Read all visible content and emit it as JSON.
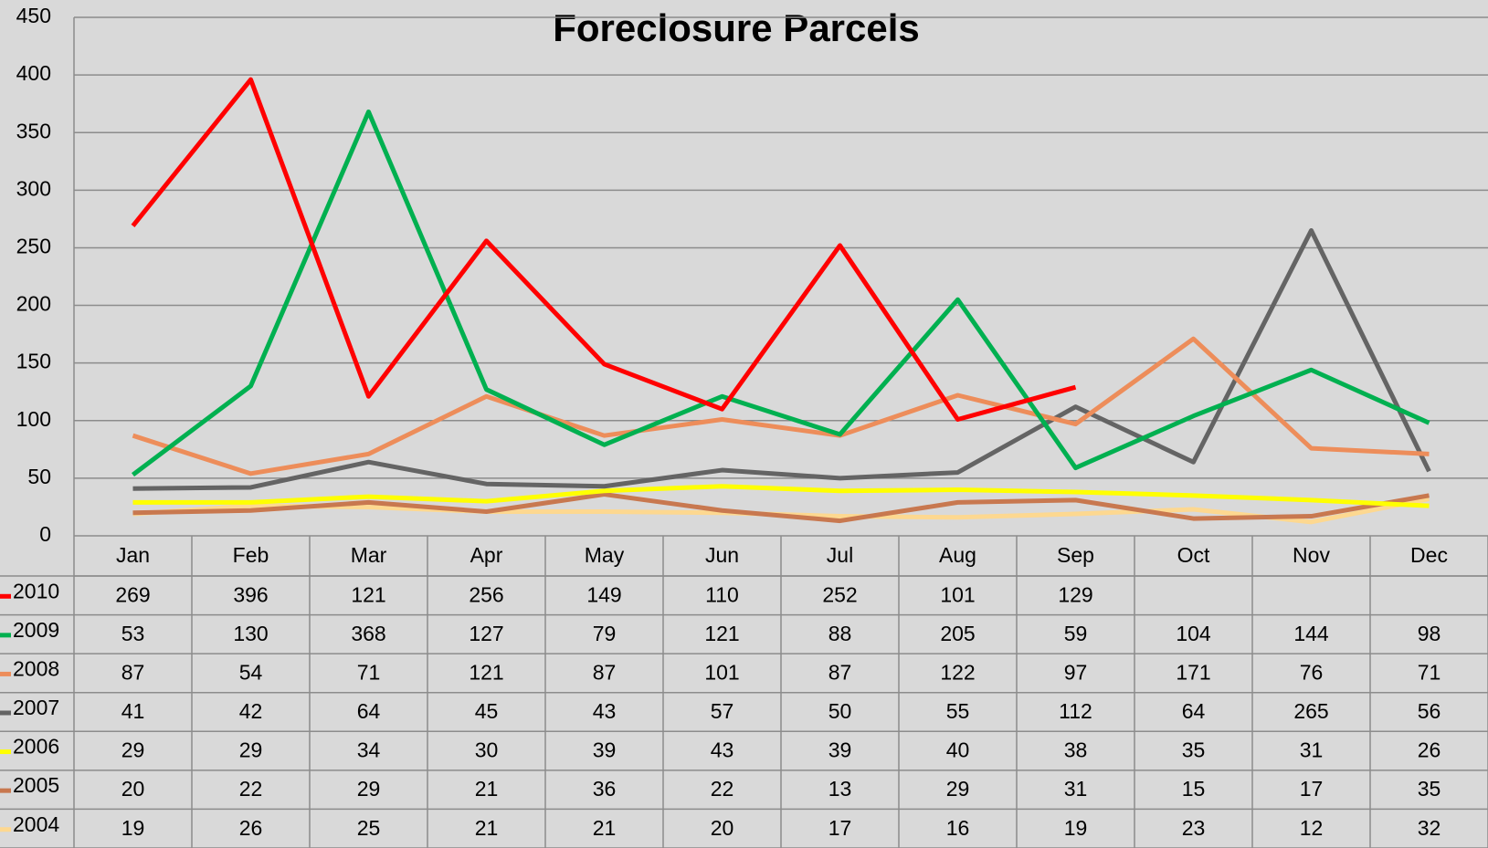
{
  "chart_data": {
    "type": "line",
    "title": "Foreclosure Parcels",
    "categories": [
      "Jan",
      "Feb",
      "Mar",
      "Apr",
      "May",
      "Jun",
      "Jul",
      "Aug",
      "Sep",
      "Oct",
      "Nov",
      "Dec"
    ],
    "series": [
      {
        "name": "2010",
        "color": "#ff0000",
        "values": [
          269,
          396,
          121,
          256,
          149,
          110,
          252,
          101,
          129,
          null,
          null,
          null
        ]
      },
      {
        "name": "2009",
        "color": "#00b050",
        "values": [
          53,
          130,
          368,
          127,
          79,
          121,
          88,
          205,
          59,
          104,
          144,
          98
        ]
      },
      {
        "name": "2008",
        "color": "#ed8d5a",
        "values": [
          87,
          54,
          71,
          121,
          87,
          101,
          87,
          122,
          97,
          171,
          76,
          71
        ]
      },
      {
        "name": "2007",
        "color": "#646464",
        "values": [
          41,
          42,
          64,
          45,
          43,
          57,
          50,
          55,
          112,
          64,
          265,
          56
        ]
      },
      {
        "name": "2006",
        "color": "#ffff00",
        "values": [
          29,
          29,
          34,
          30,
          39,
          43,
          39,
          40,
          38,
          35,
          31,
          26
        ]
      },
      {
        "name": "2005",
        "color": "#c8784f",
        "values": [
          20,
          22,
          29,
          21,
          36,
          22,
          13,
          29,
          31,
          15,
          17,
          35
        ]
      },
      {
        "name": "2004",
        "color": "#fdd890",
        "values": [
          19,
          26,
          25,
          21,
          21,
          20,
          17,
          16,
          19,
          23,
          12,
          32
        ]
      }
    ],
    "ylim": [
      0,
      450
    ],
    "yticks": [
      0,
      50,
      100,
      150,
      200,
      250,
      300,
      350,
      400,
      450
    ],
    "grid": true
  }
}
